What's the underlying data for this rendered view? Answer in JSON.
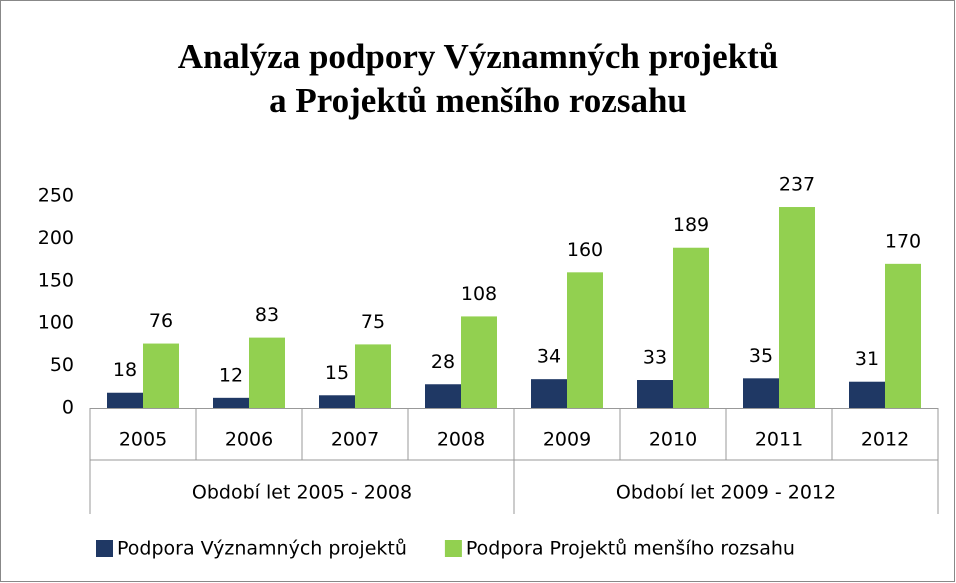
{
  "chart_data": {
    "type": "bar",
    "title": [
      "Analýza podpory Významných projektů",
      "a Projektů menšího rozsahu"
    ],
    "categories": [
      "2005",
      "2006",
      "2007",
      "2008",
      "2009",
      "2010",
      "2011",
      "2012"
    ],
    "category_groups": [
      "Období let 2005 - 2008",
      "Období let 2009 - 2012"
    ],
    "series": [
      {
        "name": "Podpora Významných projektů",
        "color": "#1f3864",
        "values": [
          18,
          12,
          15,
          28,
          34,
          33,
          35,
          31
        ]
      },
      {
        "name": "Podpora Projektů menšího rozsahu",
        "color": "#92d050",
        "values": [
          76,
          83,
          75,
          108,
          160,
          189,
          237,
          170
        ]
      }
    ],
    "ylim": [
      0,
      250
    ],
    "yticks": [
      0,
      50,
      100,
      150,
      200,
      250
    ],
    "grid": false,
    "legend": "bottom"
  }
}
